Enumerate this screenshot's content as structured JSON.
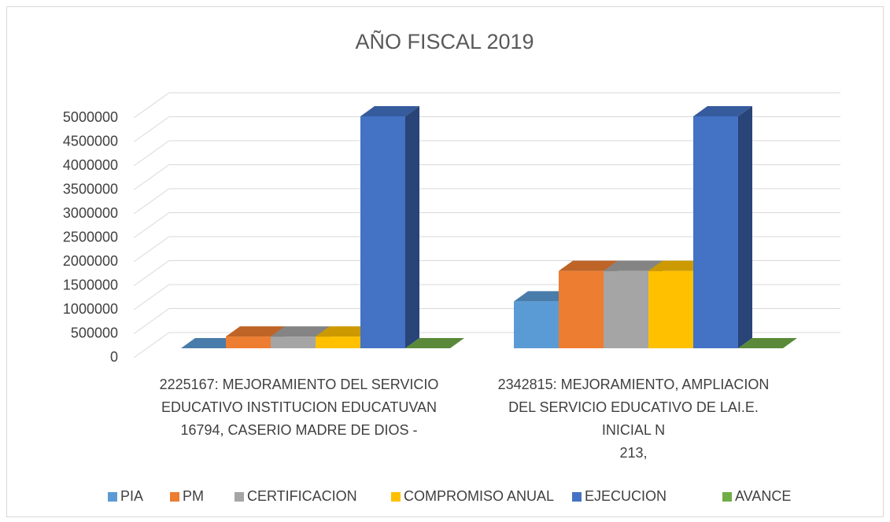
{
  "chart_data": {
    "type": "bar3d",
    "title": "AÑO FISCAL 2019",
    "categories": [
      [
        "2225167: MEJORAMIENTO DEL SERVICIO",
        "EDUCATIVO INSTITUCION EDUCATUVAN",
        "16794, CASERIO MADRE DE DIOS -"
      ],
      [
        "2342815: MEJORAMIENTO, AMPLIACION",
        "DEL SERVICIO EDUCATIVO DE LAI.E.",
        "INICIAL N",
        "213,"
      ]
    ],
    "series": [
      {
        "name": "PIA",
        "color": "#5b9bd5",
        "values": [
          0,
          1000000
        ]
      },
      {
        "name": "PM",
        "color": "#ed7d31",
        "values": [
          250000,
          1650000
        ]
      },
      {
        "name": "CERTIFICACION",
        "color": "#a5a5a5",
        "values": [
          250000,
          1650000
        ]
      },
      {
        "name": "COMPROMISO ANUAL",
        "color": "#ffc000",
        "values": [
          250000,
          1650000
        ]
      },
      {
        "name": "EJECUCION",
        "color": "#4472c4",
        "values": [
          4950000,
          4950000
        ]
      },
      {
        "name": "AVANCE",
        "color": "#70ad47",
        "values": [
          0,
          0
        ]
      }
    ],
    "ylim": [
      0,
      5000000
    ],
    "yticks": [
      0,
      500000,
      1000000,
      1500000,
      2000000,
      2500000,
      3000000,
      3500000,
      4000000,
      4500000,
      5000000
    ],
    "grid": true,
    "legend": "bottom"
  }
}
